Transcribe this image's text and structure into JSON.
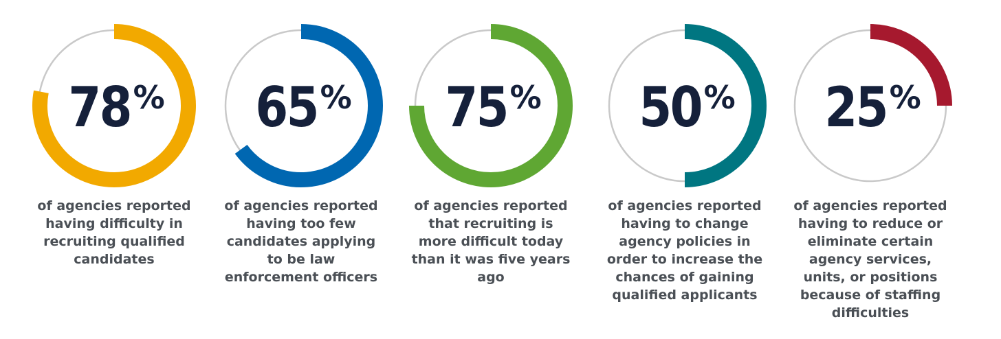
{
  "chart_data": {
    "type": "donut",
    "charts": [
      {
        "value": 78,
        "display": "78",
        "unit": "%",
        "color": "#f2a900",
        "caption": "of agencies reported having difficulty in recruiting qualified candidates"
      },
      {
        "value": 65,
        "display": "65",
        "unit": "%",
        "color": "#0067b1",
        "caption": "of agencies reported having too few candidates applying to be law enforcement officers"
      },
      {
        "value": 75,
        "display": "75",
        "unit": "%",
        "color": "#5fa733",
        "caption": "of agencies reported that recruiting is more difficult today than it was five years ago"
      },
      {
        "value": 50,
        "display": "50",
        "unit": "%",
        "color": "#007681",
        "caption": "of agencies reported having to change agency policies in order to increase the chances of gaining qualified applicants"
      },
      {
        "value": 25,
        "display": "25",
        "unit": "%",
        "color": "#a6192e",
        "caption": "of agencies reported having to reduce or eliminate certain agency services, units, or positions because of staffing difficulties"
      }
    ],
    "track_color": "#c9c9c9"
  }
}
